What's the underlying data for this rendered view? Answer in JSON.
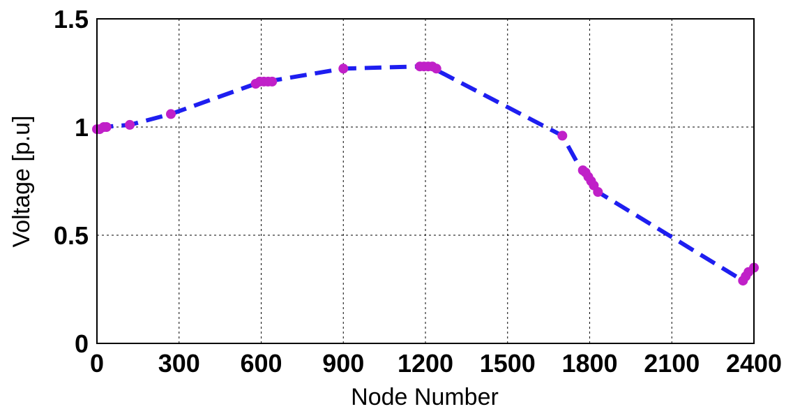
{
  "chart_data": {
    "type": "line",
    "title": "",
    "xlabel": "Node Number",
    "ylabel": "Voltage [p.u]",
    "xlim": [
      0,
      2400
    ],
    "ylim": [
      0,
      1.5
    ],
    "xticks": [
      "0",
      "300",
      "600",
      "900",
      "1200",
      "1500",
      "1800",
      "2100",
      "2400"
    ],
    "xtick_values": [
      0,
      300,
      600,
      900,
      1200,
      1500,
      1800,
      2100,
      2400
    ],
    "yticks": [
      "0",
      "0.5",
      "1",
      "1.5"
    ],
    "ytick_values": [
      0,
      0.5,
      1,
      1.5
    ],
    "grid": true,
    "colors": {
      "line": "#1e1ef0",
      "markers": "#c020c8"
    },
    "series": [
      {
        "line_x": [
          0,
          20,
          120,
          270,
          580,
          620,
          900,
          1180,
          1230,
          1700,
          1770,
          1800,
          1830,
          2360,
          2380,
          2400
        ],
        "line_y": [
          0.99,
          1.0,
          1.01,
          1.06,
          1.2,
          1.21,
          1.27,
          1.28,
          1.27,
          0.96,
          0.8,
          0.77,
          0.7,
          0.29,
          0.32,
          0.35
        ],
        "markers_x": [
          0,
          10,
          25,
          35,
          120,
          270,
          580,
          595,
          610,
          625,
          640,
          900,
          1180,
          1195,
          1210,
          1225,
          1240,
          1700,
          1775,
          1785,
          1795,
          1805,
          1815,
          1830,
          2360,
          2370,
          2380,
          2400
        ],
        "markers_y": [
          0.99,
          0.99,
          1.0,
          1.0,
          1.01,
          1.06,
          1.2,
          1.21,
          1.21,
          1.21,
          1.21,
          1.27,
          1.28,
          1.28,
          1.28,
          1.28,
          1.27,
          0.96,
          0.8,
          0.79,
          0.77,
          0.75,
          0.73,
          0.7,
          0.29,
          0.31,
          0.33,
          0.35
        ]
      }
    ]
  }
}
